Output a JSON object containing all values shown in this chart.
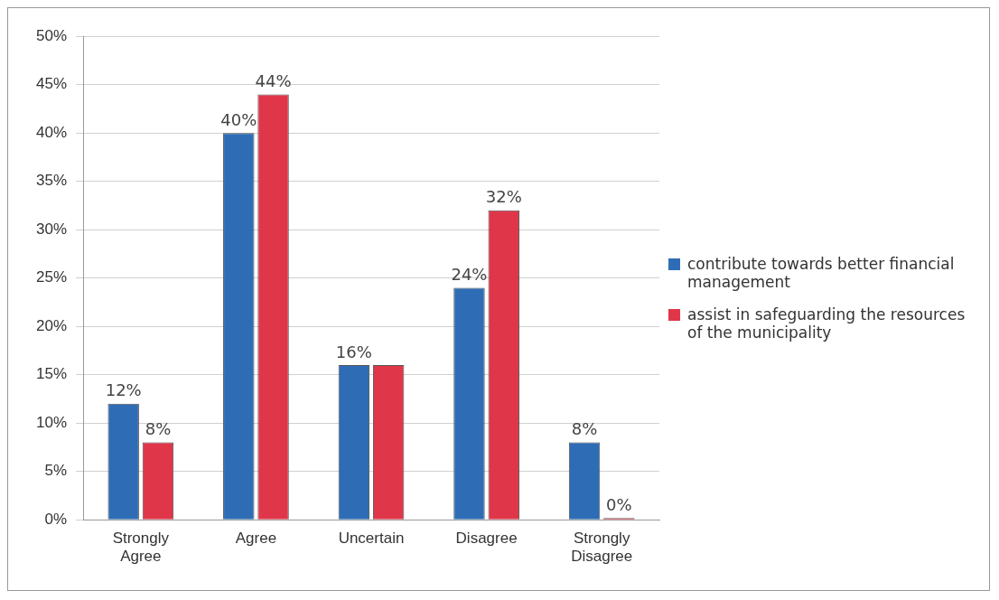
{
  "chart_data": {
    "type": "bar",
    "categories": [
      "Strongly Agree",
      "Agree",
      "Uncertain",
      "Disagree",
      "Strongly Disagree"
    ],
    "series": [
      {
        "name": "contribute towards better financial management",
        "color": "#2e6db5",
        "values": [
          12,
          40,
          16,
          24,
          8
        ],
        "value_labels": [
          "12%",
          "40%",
          "16%",
          "24%",
          "8%"
        ]
      },
      {
        "name": "assist in safeguarding the resources of the municipality",
        "color": "#e0364a",
        "values": [
          8,
          44,
          16,
          32,
          0
        ],
        "value_labels": [
          "8%",
          "44%",
          null,
          "32%",
          "0%"
        ]
      }
    ],
    "ylim": [
      0,
      50
    ],
    "yticks": [
      {
        "value": 0,
        "label": "0%"
      },
      {
        "value": 5,
        "label": "5%"
      },
      {
        "value": 10,
        "label": "10%"
      },
      {
        "value": 15,
        "label": "15%"
      },
      {
        "value": 20,
        "label": "20%"
      },
      {
        "value": 25,
        "label": "25%"
      },
      {
        "value": 30,
        "label": "30%"
      },
      {
        "value": 35,
        "label": "35%"
      },
      {
        "value": 40,
        "label": "40%"
      },
      {
        "value": 45,
        "label": "45%"
      },
      {
        "value": 50,
        "label": "50%"
      }
    ],
    "grid": "y",
    "legend": "right"
  }
}
